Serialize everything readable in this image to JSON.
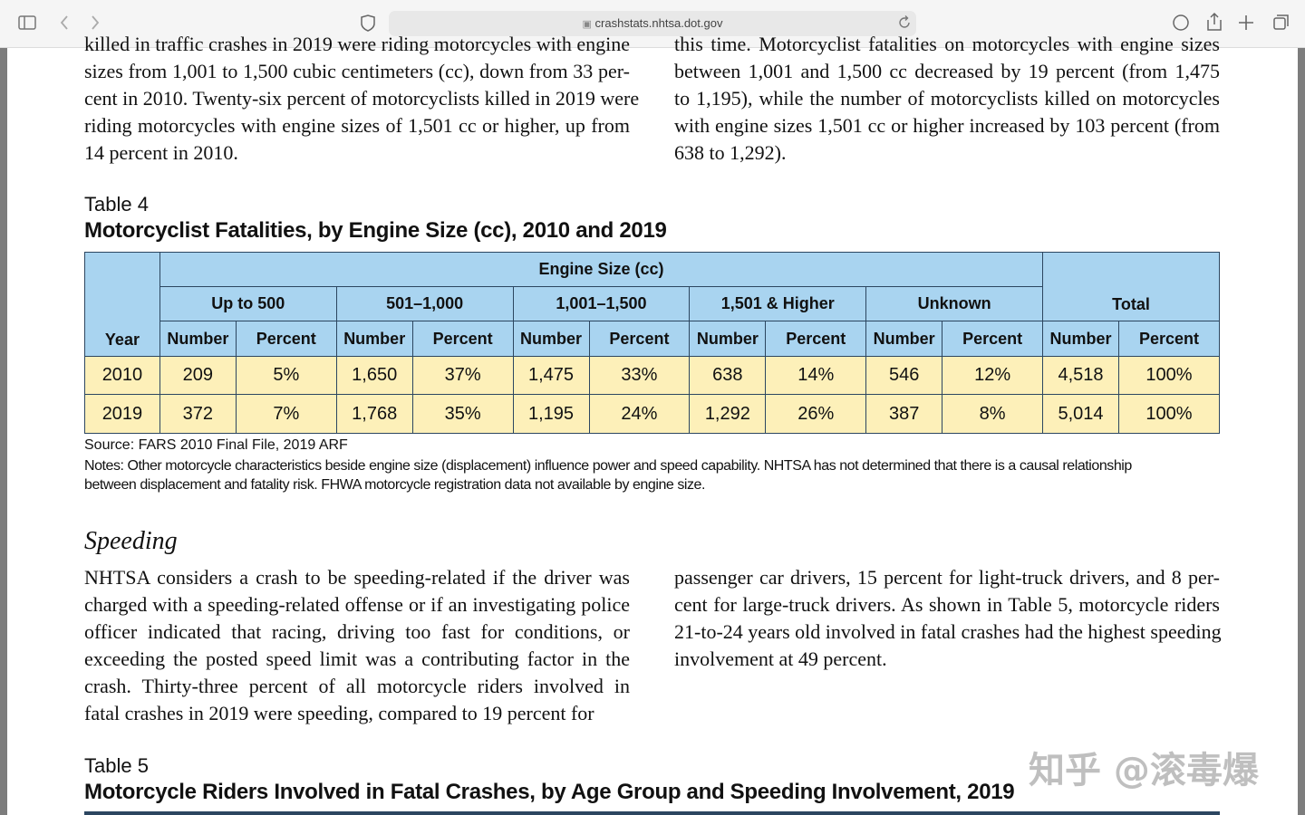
{
  "browser": {
    "url": "crashstats.nhtsa.dot.gov"
  },
  "intro": {
    "left_lines": [
      "killed in traffic crashes in 2019 were riding motorcycles with engine",
      "sizes from 1,001 to 1,500 cubic centimeters (cc), down from 33 per-",
      "cent in 2010. Twenty-six percent of motorcyclists killed in 2019 were",
      "riding motorcycles with engine sizes of 1,501 cc or higher, up from",
      "14 percent in 2010."
    ],
    "right_lines": [
      "this time. Motorcyclist fatalities on motorcycles with engine sizes",
      "between 1,001 and 1,500 cc decreased by 19 percent (from 1,475",
      "to 1,195), while the number of motorcyclists killed on motorcycles",
      "with engine sizes 1,501 cc or higher increased by 103 percent (from",
      "638 to 1,292)."
    ]
  },
  "table4": {
    "label": "Table 4",
    "title": "Motorcyclist Fatalities, by Engine Size (cc), 2010 and 2019",
    "year_header": "Year",
    "group_header": "Engine Size (cc)",
    "groups": [
      "Up to 500",
      "501–1,000",
      "1,001–1,500",
      "1,501 & Higher",
      "Unknown"
    ],
    "total_header": "Total",
    "subheaders": [
      "Number",
      "Percent",
      "Number",
      "Percent",
      "Number",
      "Percent",
      "Number",
      "Percent",
      "Number",
      "Percent",
      "Number",
      "Percent"
    ],
    "rows": [
      [
        "2010",
        "209",
        "5%",
        "1,650",
        "37%",
        "1,475",
        "33%",
        "638",
        "14%",
        "546",
        "12%",
        "4,518",
        "100%"
      ],
      [
        "2019",
        "372",
        "7%",
        "1,768",
        "35%",
        "1,195",
        "24%",
        "1,292",
        "26%",
        "387",
        "8%",
        "5,014",
        "100%"
      ]
    ],
    "source": "Source: FARS 2010 Final File, 2019 ARF",
    "notes": [
      "Notes: Other motorcycle characteristics beside engine size (displacement) influence power and speed capability. NHTSA has not determined that there is a causal relationship",
      "between displacement and fatality risk. FHWA motorcycle registration data not available by engine size."
    ]
  },
  "speeding": {
    "heading": "Speeding",
    "left_lines": [
      "NHTSA considers a crash to be speeding-related if the driver was",
      "charged with a speeding-related offense or if an investigating police",
      "officer indicated that racing, driving too fast for conditions, or",
      "exceeding the posted speed limit was a contributing factor in the",
      "crash. Thirty-three percent of all motorcycle riders involved in",
      "fatal crashes in 2019 were speeding, compared to 19 percent for"
    ],
    "right_lines": [
      "passenger car drivers, 15 percent for light-truck drivers, and 8 per-",
      "cent for large-truck drivers. As shown in Table 5, motorcycle riders",
      "21-to-24 years old involved in fatal crashes had the highest speeding",
      "involvement at 49 percent."
    ]
  },
  "table5": {
    "label": "Table 5",
    "title": "Motorcycle Riders Involved in Fatal Crashes, by Age Group and Speeding Involvement, 2019"
  },
  "watermark": "知乎 @滚毒爆"
}
